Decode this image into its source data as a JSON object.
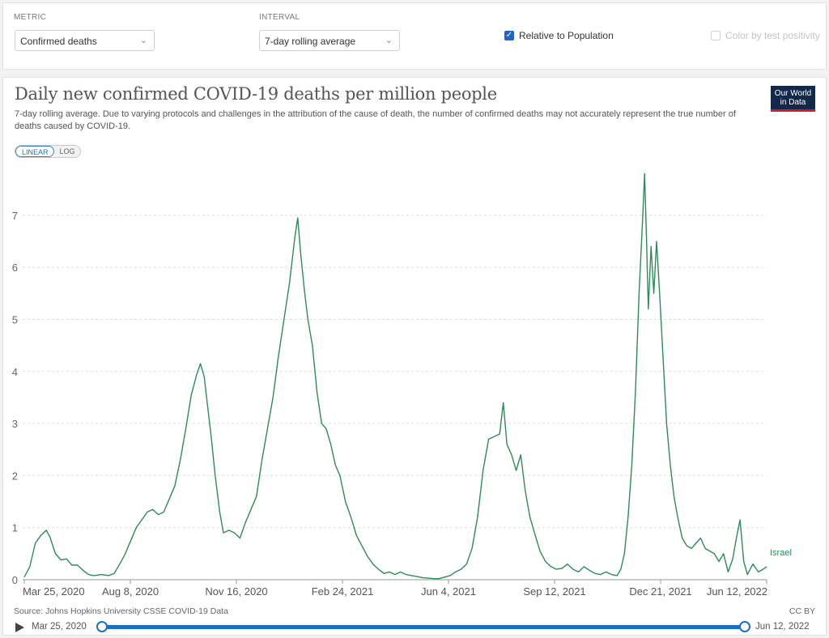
{
  "controls": {
    "metric_label": "METRIC",
    "metric_value": "Confirmed deaths",
    "interval_label": "INTERVAL",
    "interval_value": "7-day rolling average",
    "relative_label": "Relative to Population",
    "relative_checked": true,
    "positivity_label": "Color by test positivity",
    "positivity_checked": false
  },
  "logo": {
    "line1": "Our World",
    "line2": "in Data"
  },
  "scale_toggle": {
    "linear": "LINEAR",
    "log": "LOG"
  },
  "footer": {
    "source": "Source: Johns Hopkins University CSSE COVID-19 Data",
    "license": "CC BY"
  },
  "timeline": {
    "start": "Mar 25, 2020",
    "end": "Jun 12, 2022"
  },
  "colors": {
    "line": "#2e8b57",
    "accent": "#1a6ec5",
    "logo_bg": "#14284a",
    "logo_bar": "#c7202c"
  },
  "chart_data": {
    "type": "line",
    "title": "Daily new confirmed COVID-19 deaths per million people",
    "subtitle": "7-day rolling average. Due to varying protocols and challenges in the attribution of the cause of death, the number of confirmed deaths may not accurately represent the true number of deaths caused by COVID-19.",
    "y_scale": "linear",
    "ylim": [
      0,
      7.8
    ],
    "y_ticks": [
      0,
      1,
      2,
      3,
      4,
      5,
      6,
      7
    ],
    "x_tick_labels": [
      "Mar 25, 2020",
      "Aug 8, 2020",
      "Nov 16, 2020",
      "Feb 24, 2021",
      "Jun 4, 2021",
      "Sep 12, 2021",
      "Dec 21, 2021",
      "Jun 12, 2022"
    ],
    "x_range": [
      "2020-03-25",
      "2022-06-12"
    ],
    "grid": "horizontal dashed",
    "series": [
      {
        "name": "Israel",
        "points": [
          [
            "2020-03-25",
            0.05
          ],
          [
            "2020-03-31",
            0.25
          ],
          [
            "2020-04-06",
            0.7
          ],
          [
            "2020-04-12",
            0.85
          ],
          [
            "2020-04-18",
            0.95
          ],
          [
            "2020-04-22",
            0.82
          ],
          [
            "2020-04-28",
            0.5
          ],
          [
            "2020-05-04",
            0.38
          ],
          [
            "2020-05-10",
            0.4
          ],
          [
            "2020-05-16",
            0.28
          ],
          [
            "2020-05-22",
            0.28
          ],
          [
            "2020-05-28",
            0.18
          ],
          [
            "2020-06-03",
            0.1
          ],
          [
            "2020-06-09",
            0.08
          ],
          [
            "2020-06-17",
            0.1
          ],
          [
            "2020-06-25",
            0.08
          ],
          [
            "2020-07-01",
            0.12
          ],
          [
            "2020-07-07",
            0.3
          ],
          [
            "2020-07-13",
            0.5
          ],
          [
            "2020-07-19",
            0.75
          ],
          [
            "2020-07-25",
            1.0
          ],
          [
            "2020-07-31",
            1.15
          ],
          [
            "2020-08-06",
            1.3
          ],
          [
            "2020-08-12",
            1.35
          ],
          [
            "2020-08-18",
            1.25
          ],
          [
            "2020-08-24",
            1.3
          ],
          [
            "2020-08-30",
            1.55
          ],
          [
            "2020-09-05",
            1.8
          ],
          [
            "2020-09-11",
            2.3
          ],
          [
            "2020-09-17",
            2.9
          ],
          [
            "2020-09-23",
            3.55
          ],
          [
            "2020-09-29",
            3.95
          ],
          [
            "2020-10-03",
            4.15
          ],
          [
            "2020-10-07",
            3.9
          ],
          [
            "2020-10-11",
            3.3
          ],
          [
            "2020-10-15",
            2.7
          ],
          [
            "2020-10-19",
            2.0
          ],
          [
            "2020-10-24",
            1.3
          ],
          [
            "2020-10-28",
            0.9
          ],
          [
            "2020-11-03",
            0.95
          ],
          [
            "2020-11-09",
            0.9
          ],
          [
            "2020-11-15",
            0.8
          ],
          [
            "2020-11-21",
            1.1
          ],
          [
            "2020-11-27",
            1.35
          ],
          [
            "2020-12-03",
            1.6
          ],
          [
            "2020-12-09",
            2.3
          ],
          [
            "2020-12-15",
            2.9
          ],
          [
            "2020-12-21",
            3.5
          ],
          [
            "2020-12-27",
            4.3
          ],
          [
            "2021-01-02",
            5.0
          ],
          [
            "2021-01-08",
            5.7
          ],
          [
            "2021-01-14",
            6.6
          ],
          [
            "2021-01-17",
            6.95
          ],
          [
            "2021-01-20",
            6.3
          ],
          [
            "2021-01-24",
            5.6
          ],
          [
            "2021-01-28",
            5.0
          ],
          [
            "2021-02-02",
            4.5
          ],
          [
            "2021-02-07",
            3.6
          ],
          [
            "2021-02-12",
            3.0
          ],
          [
            "2021-02-17",
            2.9
          ],
          [
            "2021-02-22",
            2.6
          ],
          [
            "2021-02-27",
            2.2
          ],
          [
            "2021-03-04",
            2.0
          ],
          [
            "2021-03-10",
            1.5
          ],
          [
            "2021-03-16",
            1.2
          ],
          [
            "2021-03-22",
            0.85
          ],
          [
            "2021-03-28",
            0.65
          ],
          [
            "2021-04-03",
            0.45
          ],
          [
            "2021-04-09",
            0.3
          ],
          [
            "2021-04-15",
            0.2
          ],
          [
            "2021-04-21",
            0.12
          ],
          [
            "2021-04-27",
            0.15
          ],
          [
            "2021-05-03",
            0.1
          ],
          [
            "2021-05-09",
            0.15
          ],
          [
            "2021-05-15",
            0.1
          ],
          [
            "2021-05-21",
            0.08
          ],
          [
            "2021-05-27",
            0.06
          ],
          [
            "2021-06-02",
            0.04
          ],
          [
            "2021-06-08",
            0.03
          ],
          [
            "2021-06-14",
            0.02
          ],
          [
            "2021-06-20",
            0.02
          ],
          [
            "2021-06-26",
            0.05
          ],
          [
            "2021-07-02",
            0.08
          ],
          [
            "2021-07-08",
            0.15
          ],
          [
            "2021-07-14",
            0.2
          ],
          [
            "2021-07-20",
            0.3
          ],
          [
            "2021-07-26",
            0.6
          ],
          [
            "2021-08-01",
            1.2
          ],
          [
            "2021-08-07",
            2.1
          ],
          [
            "2021-08-13",
            2.7
          ],
          [
            "2021-08-19",
            2.75
          ],
          [
            "2021-08-25",
            2.8
          ],
          [
            "2021-08-29",
            3.4
          ],
          [
            "2021-09-02",
            2.6
          ],
          [
            "2021-09-07",
            2.4
          ],
          [
            "2021-09-12",
            2.1
          ],
          [
            "2021-09-17",
            2.4
          ],
          [
            "2021-09-22",
            1.7
          ],
          [
            "2021-09-27",
            1.2
          ],
          [
            "2021-10-02",
            0.9
          ],
          [
            "2021-10-08",
            0.55
          ],
          [
            "2021-10-14",
            0.35
          ],
          [
            "2021-10-20",
            0.25
          ],
          [
            "2021-10-26",
            0.2
          ],
          [
            "2021-11-01",
            0.22
          ],
          [
            "2021-11-07",
            0.3
          ],
          [
            "2021-11-13",
            0.2
          ],
          [
            "2021-11-19",
            0.15
          ],
          [
            "2021-11-25",
            0.25
          ],
          [
            "2021-12-01",
            0.18
          ],
          [
            "2021-12-07",
            0.12
          ],
          [
            "2021-12-13",
            0.1
          ],
          [
            "2021-12-19",
            0.15
          ],
          [
            "2021-12-25",
            0.1
          ],
          [
            "2021-12-31",
            0.08
          ],
          [
            "2022-01-04",
            0.2
          ],
          [
            "2022-01-08",
            0.5
          ],
          [
            "2022-01-12",
            1.2
          ],
          [
            "2022-01-16",
            2.2
          ],
          [
            "2022-01-20",
            3.6
          ],
          [
            "2022-01-24",
            5.5
          ],
          [
            "2022-01-28",
            7.0
          ],
          [
            "2022-01-30",
            7.8
          ],
          [
            "2022-02-01",
            6.6
          ],
          [
            "2022-02-03",
            5.2
          ],
          [
            "2022-02-06",
            6.4
          ],
          [
            "2022-02-09",
            5.5
          ],
          [
            "2022-02-12",
            6.5
          ],
          [
            "2022-02-15",
            5.6
          ],
          [
            "2022-02-19",
            4.3
          ],
          [
            "2022-02-23",
            3.0
          ],
          [
            "2022-02-27",
            2.2
          ],
          [
            "2022-03-03",
            1.6
          ],
          [
            "2022-03-07",
            1.2
          ],
          [
            "2022-03-12",
            0.8
          ],
          [
            "2022-03-17",
            0.65
          ],
          [
            "2022-03-22",
            0.6
          ],
          [
            "2022-03-27",
            0.7
          ],
          [
            "2022-04-01",
            0.8
          ],
          [
            "2022-04-06",
            0.6
          ],
          [
            "2022-04-11",
            0.55
          ],
          [
            "2022-04-16",
            0.5
          ],
          [
            "2022-04-21",
            0.35
          ],
          [
            "2022-04-26",
            0.5
          ],
          [
            "2022-05-01",
            0.15
          ],
          [
            "2022-05-06",
            0.4
          ],
          [
            "2022-05-10",
            0.8
          ],
          [
            "2022-05-14",
            1.15
          ],
          [
            "2022-05-18",
            0.35
          ],
          [
            "2022-05-22",
            0.1
          ],
          [
            "2022-05-28",
            0.3
          ],
          [
            "2022-06-03",
            0.15
          ],
          [
            "2022-06-08",
            0.2
          ],
          [
            "2022-06-12",
            0.25
          ]
        ]
      }
    ]
  }
}
